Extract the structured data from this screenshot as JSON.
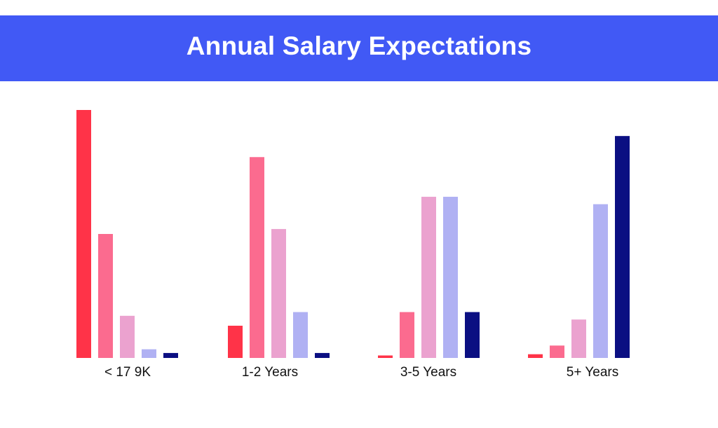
{
  "chart_data": {
    "type": "bar",
    "title": "Annual Salary Expectations",
    "xlabel": "",
    "ylabel": "",
    "categories": [
      "< 17 9K",
      "1-2 Years",
      "3-5 Years",
      "5+ Years"
    ],
    "series": [
      {
        "values": [
          100,
          13,
          1,
          1.5
        ],
        "color": "#ff3348"
      },
      {
        "values": [
          50,
          81,
          18.5,
          5
        ],
        "color": "#fb6b8f"
      },
      {
        "values": [
          17,
          52,
          65,
          15.5
        ],
        "color": "#eba2cf"
      },
      {
        "values": [
          3.5,
          18.5,
          65,
          62
        ],
        "color": "#b0b1f3"
      },
      {
        "values": [
          2,
          2,
          18.5,
          89.5
        ],
        "color": "#0b0f82"
      }
    ],
    "ylim": [
      0,
      100
    ],
    "grid": false,
    "legend": "none"
  },
  "colors": {
    "banner": "#4159f5",
    "title_text": "#ffffff"
  }
}
